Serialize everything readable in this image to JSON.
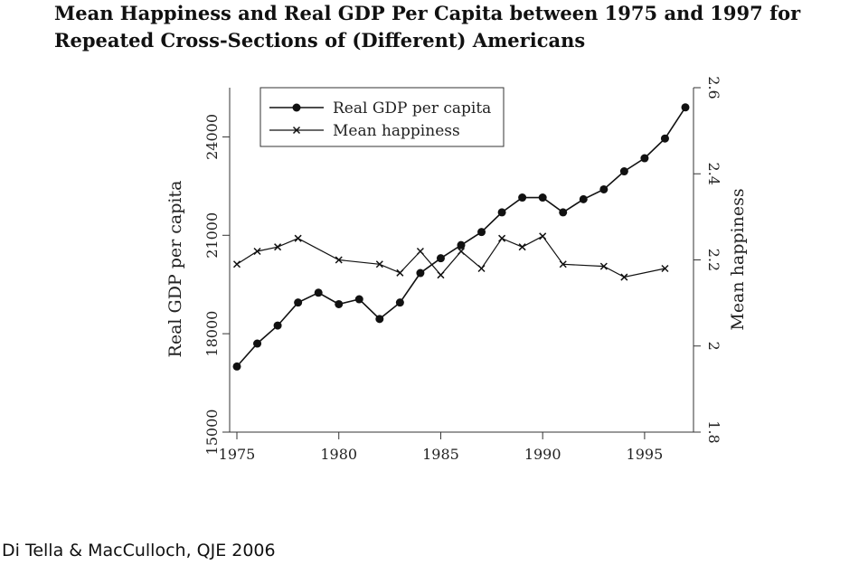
{
  "title": "Mean Happiness and Real GDP Per Capita between 1975 and 1997 for Repeated Cross-Sections of (Different) Americans",
  "caption": "Di Tella & MacCulloch, QJE 2006",
  "chart_data": {
    "type": "line",
    "title": "Mean Happiness and Real GDP Per Capita between 1975 and 1997 for Repeated Cross-Sections of (Different) Americans",
    "xlim": [
      1975,
      1997
    ],
    "x_ticks": [
      1975,
      1980,
      1985,
      1990,
      1995
    ],
    "y_left": {
      "label": "Real GDP per capita",
      "lim": [
        15000,
        25500
      ],
      "ticks": [
        15000,
        18000,
        21000,
        24000
      ]
    },
    "y_right": {
      "label": "Mean happiness",
      "lim": [
        1.8,
        2.6
      ],
      "ticks": [
        1.8,
        2,
        2.2,
        2.4,
        2.6
      ]
    },
    "legend": {
      "placement": "top-left",
      "entries": [
        "Real GDP per capita",
        "Mean happiness"
      ]
    },
    "series": [
      {
        "name": "Real GDP per capita",
        "axis": "left",
        "marker": "circle",
        "x": [
          1975,
          1976,
          1977,
          1978,
          1979,
          1980,
          1981,
          1982,
          1983,
          1984,
          1985,
          1986,
          1987,
          1988,
          1989,
          1990,
          1991,
          1992,
          1993,
          1994,
          1995,
          1996,
          1997
        ],
        "values": [
          17000,
          17700,
          18250,
          18950,
          19250,
          18900,
          19050,
          18450,
          18950,
          19850,
          20300,
          20700,
          21100,
          21700,
          22150,
          22150,
          21700,
          22100,
          22400,
          22950,
          23350,
          23950,
          24900
        ]
      },
      {
        "name": "Mean happiness",
        "axis": "right",
        "marker": "x",
        "x": [
          1975,
          1976,
          1977,
          1978,
          1980,
          1982,
          1983,
          1984,
          1985,
          1986,
          1987,
          1988,
          1989,
          1990,
          1991,
          1993,
          1994,
          1996
        ],
        "values": [
          2.19,
          2.22,
          2.23,
          2.25,
          2.2,
          2.19,
          2.17,
          2.22,
          2.165,
          2.22,
          2.18,
          2.25,
          2.23,
          2.255,
          2.19,
          2.185,
          2.16,
          2.18
        ]
      }
    ]
  }
}
